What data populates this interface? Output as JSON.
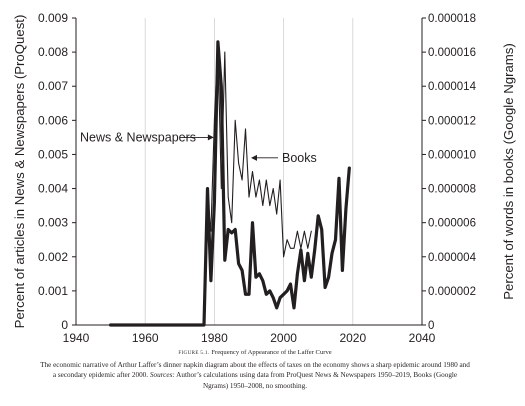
{
  "chart_data": {
    "type": "line",
    "xlim": [
      1940,
      2040
    ],
    "ylim_left": [
      0,
      0.009
    ],
    "ylim_right": [
      0,
      1.8e-05
    ],
    "x_ticks": [
      1940,
      1960,
      1980,
      2000,
      2020,
      2040
    ],
    "y_left_ticks": [
      "0",
      "0.001",
      "0.002",
      "0.003",
      "0.004",
      "0.005",
      "0.006",
      "0.007",
      "0.008",
      "0.009"
    ],
    "y_right_ticks": [
      "0",
      "0.000002",
      "0.000004",
      "0.000006",
      "0.000008",
      "0.000010",
      "0.000012",
      "0.000014",
      "0.000016",
      "0.000018"
    ],
    "ylabel_left": "Percent of articles in News & Newspapers (ProQuest)",
    "ylabel_right": "Percent of words in books (Google Ngrams)",
    "grid": "vertical",
    "series": [
      {
        "name": "News & Newspapers",
        "axis": "left",
        "style": "thick",
        "x": [
          1950,
          1955,
          1960,
          1965,
          1970,
          1975,
          1976,
          1977,
          1978,
          1979,
          1980,
          1981,
          1982,
          1983,
          1984,
          1985,
          1986,
          1987,
          1988,
          1989,
          1990,
          1991,
          1992,
          1993,
          1994,
          1995,
          1996,
          1997,
          1998,
          1999,
          2000,
          2001,
          2002,
          2003,
          2004,
          2005,
          2006,
          2007,
          2008,
          2009,
          2010,
          2011,
          2012,
          2013,
          2014,
          2015,
          2016,
          2017,
          2018,
          2019
        ],
        "y": [
          0,
          0,
          0,
          0,
          0,
          0,
          0,
          0,
          0.004,
          0.0013,
          0.0036,
          0.0083,
          0.007,
          0.0019,
          0.0028,
          0.0027,
          0.0028,
          0.0018,
          0.0016,
          0.0009,
          0.0009,
          0.003,
          0.0014,
          0.0015,
          0.0013,
          0.0009,
          0.001,
          0.0008,
          0.0005,
          0.0008,
          0.0009,
          0.001,
          0.0012,
          0.0005,
          0.0015,
          0.0022,
          0.0013,
          0.0021,
          0.0014,
          0.0022,
          0.0032,
          0.0028,
          0.0011,
          0.0014,
          0.0021,
          0.0025,
          0.0043,
          0.0016,
          0.0034,
          0.0046
        ]
      },
      {
        "name": "Books",
        "axis": "right",
        "style": "thin",
        "x": [
          1977,
          1978,
          1979,
          1980,
          1981,
          1982,
          1983,
          1984,
          1985,
          1986,
          1987,
          1988,
          1989,
          1990,
          1991,
          1992,
          1993,
          1994,
          1995,
          1996,
          1997,
          1998,
          1999,
          2000,
          2001,
          2002,
          2003,
          2004,
          2005,
          2006,
          2007,
          2008
        ],
        "y": [
          5e-07,
          7.5e-06,
          5.5e-06,
          1.2e-05,
          1.65e-05,
          8e-06,
          1.6e-05,
          7.5e-06,
          6e-06,
          1.2e-05,
          9.5e-06,
          8.5e-06,
          1.15e-05,
          7.5e-06,
          9e-06,
          7.5e-06,
          8.5e-06,
          7e-06,
          8.5e-06,
          7e-06,
          8e-06,
          6.5e-06,
          8.5e-06,
          4e-06,
          5e-06,
          4.5e-06,
          4.5e-06,
          5.5e-06,
          4.5e-06,
          5.5e-06,
          4.5e-06,
          5.5e-06
        ]
      }
    ],
    "annotations": [
      {
        "text": "News & Newspapers",
        "target_x": 1981,
        "target_y_left": 0.0055
      },
      {
        "text": "Books",
        "target_x": 1990,
        "target_y_left": 0.0049
      }
    ]
  },
  "caption": {
    "figure_number": "FIGURE 5.1.",
    "figure_title": "Frequency of Appearance of the Laffer Curve",
    "body": "The economic narrative of Arthur Laffer’s dinner napkin diagram about the effects of taxes on the economy shows a sharp epidemic around 1980 and a secondary epidemic after 2000.",
    "sources_label": "Sources:",
    "sources_text": "Author’s calculations using data from ProQuest News & Newspapers 1950–2019, Books (Google Ngrams) 1950–2008, no smoothing."
  }
}
